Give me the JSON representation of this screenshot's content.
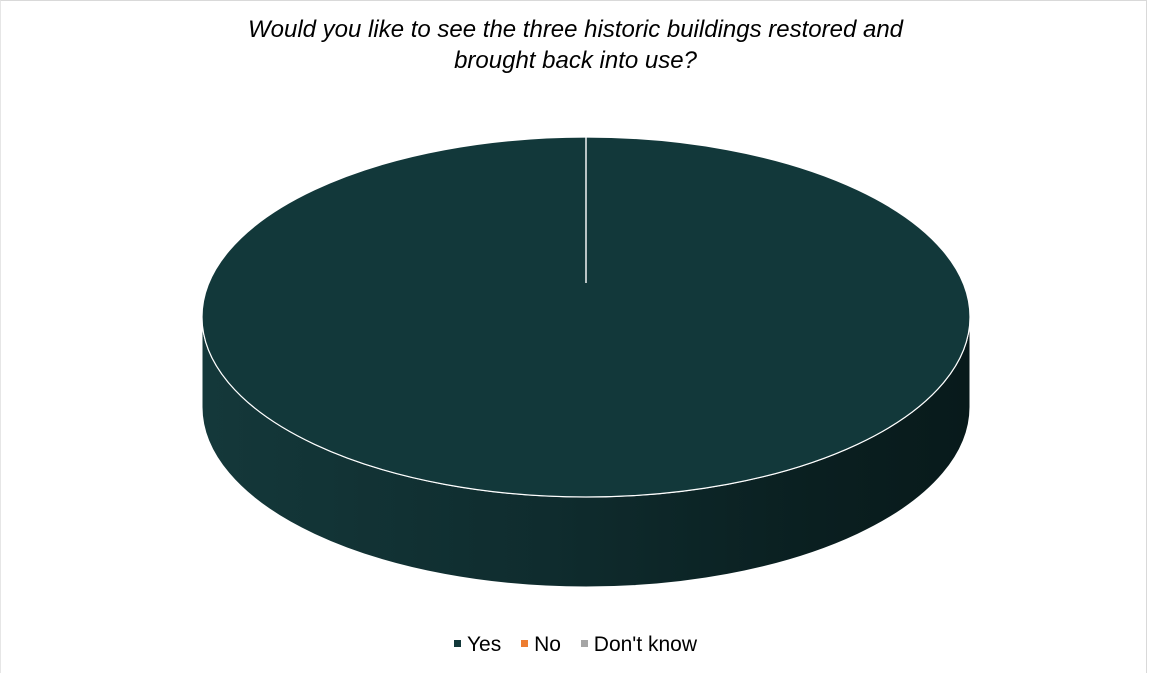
{
  "chart_data": {
    "type": "pie",
    "title": "Would you like to see the three historic buildings restored and brought back into use?",
    "title_lines": [
      "Would you like to see the three historic buildings restored and",
      "brought back into use?"
    ],
    "categories": [
      "Yes",
      "No",
      "Don't know"
    ],
    "values": [
      100,
      0,
      0
    ],
    "value_unit": "percent",
    "colors": [
      "#12383A",
      "#ED7D31",
      "#A5A5A5"
    ],
    "style": "3d",
    "legend_position": "bottom"
  }
}
